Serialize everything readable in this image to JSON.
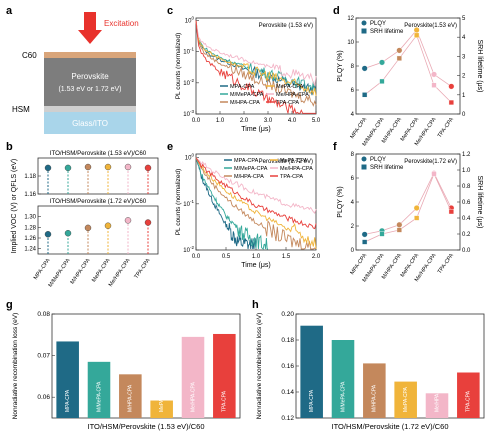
{
  "colors": {
    "MPA": "#1f6a86",
    "MMePA": "#34a89a",
    "MHPA": "#c4885c",
    "MePA": "#f0b43a",
    "MeHPA": "#f3b6c8",
    "TPA": "#e8403c",
    "arrow": "#e8322c",
    "c60": "#d9a57a",
    "pero": "#7d7d7d",
    "hsm": "#cfcfcf",
    "glass": "#a9d5ea"
  },
  "panel_labels": [
    "a",
    "b",
    "c",
    "d",
    "e",
    "f",
    "g",
    "h"
  ],
  "panel_a": {
    "excitation": "Excitation",
    "c60": "C60",
    "hsm": "HSM",
    "perovskite": "Perovskite",
    "bandgap": "(1.53 eV or 1.72 eV)",
    "glass": "Glass/ITO"
  },
  "chart_data": [
    {
      "panel": "b",
      "type": "scatter",
      "ylabel": "Implied VOC (V) or QFLS (eV)",
      "categories": [
        "MPA-CPA",
        "M/MePA-CPA",
        "M/HPA-CPA",
        "MePA-CPA",
        "Me/HPA-CPA",
        "TPA-CPA"
      ],
      "subplots": [
        {
          "label": "ITO/HSM/Perovskite (1.53 eV)/C60",
          "ylim": [
            1.16,
            1.2
          ],
          "yticks": [
            1.16,
            1.18
          ],
          "values": [
            1.189,
            1.189,
            1.19,
            1.19,
            1.19,
            1.189
          ]
        },
        {
          "label": "ITO/HSM/Perovskite (1.72 eV)/C60",
          "ylim": [
            1.23,
            1.32
          ],
          "yticks": [
            1.24,
            1.26,
            1.28,
            1.3
          ],
          "values": [
            1.267,
            1.269,
            1.279,
            1.283,
            1.293,
            1.289
          ]
        }
      ]
    },
    {
      "panel": "c",
      "type": "line",
      "title": "Perovskite (1.53 eV)",
      "xlabel": "Time (μs)",
      "ylabel": "PL counts (normalized)",
      "xlim": [
        0,
        5
      ],
      "xticks": [
        0.0,
        1.0,
        2.0,
        3.0,
        4.0,
        5.0
      ],
      "ylog": true,
      "ylim": [
        0.001,
        1.2
      ],
      "yticks": [
        "10^0",
        "10^-1",
        "10^-2",
        "10^-3"
      ],
      "series": [
        {
          "name": "MPA-CPA",
          "x": [
            0,
            0.1,
            0.3,
            0.6,
            1,
            2,
            3,
            4,
            5
          ],
          "y": [
            1,
            0.22,
            0.12,
            0.08,
            0.055,
            0.028,
            0.016,
            0.009,
            0.0055
          ]
        },
        {
          "name": "M/MePA-CPA",
          "x": [
            0,
            0.1,
            0.3,
            0.6,
            1,
            2,
            3,
            4,
            5
          ],
          "y": [
            1,
            0.25,
            0.14,
            0.095,
            0.065,
            0.034,
            0.02,
            0.012,
            0.007
          ]
        },
        {
          "name": "M/HPA-CPA",
          "x": [
            0,
            0.1,
            0.3,
            0.6,
            1,
            2,
            3,
            4,
            5
          ],
          "y": [
            1,
            0.2,
            0.1,
            0.065,
            0.042,
            0.019,
            0.009,
            0.0045,
            0.0025
          ]
        },
        {
          "name": "MePA-CPA",
          "x": [
            0,
            0.1,
            0.3,
            0.6,
            1,
            2,
            3,
            4,
            5
          ],
          "y": [
            1,
            0.24,
            0.13,
            0.09,
            0.06,
            0.03,
            0.017,
            0.0095,
            0.0055
          ]
        },
        {
          "name": "Me/HPA-CPA",
          "x": [
            0,
            0.1,
            0.3,
            0.6,
            1,
            2,
            3,
            4,
            5
          ],
          "y": [
            1,
            0.3,
            0.18,
            0.13,
            0.095,
            0.055,
            0.033,
            0.02,
            0.012
          ]
        },
        {
          "name": "TPA-CPA",
          "x": [
            0,
            0.1,
            0.3,
            0.6,
            1,
            2,
            3,
            4,
            5
          ],
          "y": [
            1,
            0.16,
            0.07,
            0.04,
            0.024,
            0.008,
            0.003,
            0.0013,
            0.0006
          ]
        }
      ]
    },
    {
      "panel": "d",
      "type": "line",
      "title": "Perovskite(1.53 eV)",
      "ylabel": "PLQY (%)",
      "y2label": "SRH lifetime (μs)",
      "categories": [
        "MPA-CPA",
        "M/MePA-CPA",
        "M/HPA-CPA",
        "MePA-CPA",
        "Me/HPA-CPA",
        "TPA-CPA"
      ],
      "ylim": [
        4,
        12
      ],
      "yticks": [
        4,
        6,
        8,
        10,
        12
      ],
      "y2lim": [
        0,
        5
      ],
      "y2ticks": [
        0,
        1,
        2,
        3,
        4,
        5
      ],
      "series": [
        {
          "name": "PLQY",
          "axis": "left",
          "values": [
            7.8,
            8.3,
            9.3,
            11.0,
            7.3,
            6.3
          ]
        },
        {
          "name": "SRH lifetime",
          "axis": "right",
          "values": [
            1.0,
            1.7,
            2.9,
            4.1,
            1.5,
            0.6
          ]
        }
      ]
    },
    {
      "panel": "e",
      "type": "line",
      "title": "Perovskite (1.72 eV)",
      "xlabel": "Time (μs)",
      "ylabel": "PL counts (normalized)",
      "xlim": [
        0,
        2
      ],
      "xticks": [
        0.0,
        0.5,
        1.0,
        1.5,
        2.0
      ],
      "ylog": true,
      "ylim": [
        0.01,
        1.2
      ],
      "yticks": [
        "10^0",
        "10^-1",
        "10^-2"
      ],
      "series": [
        {
          "name": "MPA-CPA",
          "x": [
            0,
            0.1,
            0.3,
            0.5,
            0.7,
            1.0
          ],
          "y": [
            1,
            0.35,
            0.1,
            0.035,
            0.015,
            0.012
          ]
        },
        {
          "name": "M/MePA-CPA",
          "x": [
            0,
            0.1,
            0.3,
            0.5,
            0.8,
            1.2
          ],
          "y": [
            1,
            0.4,
            0.14,
            0.055,
            0.022,
            0.012
          ]
        },
        {
          "name": "M/HPA-CPA",
          "x": [
            0,
            0.1,
            0.3,
            0.6,
            1.0,
            1.5,
            2.0
          ],
          "y": [
            1,
            0.55,
            0.25,
            0.1,
            0.04,
            0.017,
            0.011
          ]
        },
        {
          "name": "MePA-CPA",
          "x": [
            0,
            0.1,
            0.3,
            0.6,
            1.0,
            1.5,
            2.0
          ],
          "y": [
            1,
            0.6,
            0.33,
            0.15,
            0.065,
            0.03,
            0.015
          ]
        },
        {
          "name": "Me/HPA-CPA",
          "x": [
            0,
            0.1,
            0.3,
            0.6,
            1.0,
            1.5,
            2.0
          ],
          "y": [
            1,
            0.75,
            0.5,
            0.3,
            0.17,
            0.1,
            0.07
          ]
        },
        {
          "name": "TPA-CPA",
          "x": [
            0,
            0.1,
            0.3,
            0.6,
            1.0,
            1.5,
            2.0
          ],
          "y": [
            1,
            0.65,
            0.38,
            0.2,
            0.09,
            0.05,
            0.03
          ]
        }
      ]
    },
    {
      "panel": "f",
      "type": "line",
      "title": "Perovskite(1.72 eV)",
      "ylabel": "PLQY (%)",
      "y2label": "SRH lifetime (μs)",
      "categories": [
        "MPA-CPA",
        "M/MePA-CPA",
        "M/HPA-CPA",
        "MePA-CPA",
        "Me/HPA-CPA",
        "TPA-CPA"
      ],
      "ylim": [
        0,
        8
      ],
      "yticks": [
        0,
        2,
        4,
        6,
        8
      ],
      "y2lim": [
        0.0,
        1.2
      ],
      "y2ticks": [
        0.0,
        0.2,
        0.4,
        0.6,
        0.8,
        1.0,
        1.2
      ],
      "series": [
        {
          "name": "PLQY",
          "axis": "left",
          "values": [
            1.3,
            1.6,
            2.1,
            3.5,
            6.4,
            3.5
          ]
        },
        {
          "name": "SRH lifetime",
          "axis": "right",
          "values": [
            0.1,
            0.2,
            0.25,
            0.4,
            0.95,
            0.48
          ]
        }
      ]
    },
    {
      "panel": "g",
      "type": "bar",
      "xlabel": "ITO/HSM/Perovskite (1.53 eV)/C60",
      "ylabel": "Nonradiative recombination loss (eV)",
      "categories": [
        "MPA-CPA",
        "M/MePA-CPA",
        "M/HPA-CPA",
        "MePA-CPA",
        "Me/HPA-CPA",
        "TPA-CPA"
      ],
      "values": [
        0.0734,
        0.0685,
        0.0655,
        0.0592,
        0.0745,
        0.0752
      ],
      "ylim": [
        0.055,
        0.08
      ],
      "yticks": [
        0.06,
        0.07,
        0.08
      ]
    },
    {
      "panel": "h",
      "type": "bar",
      "xlabel": "ITO/HSM/Perovskite (1.72 eV)/C60",
      "ylabel": "Nonradiative recombination loss (eV)",
      "categories": [
        "MPA-CPA",
        "M/MePA-CPA",
        "M/HPA-CPA",
        "MePA-CPA",
        "Me/HPA-CPA",
        "TPA-CPA"
      ],
      "values": [
        0.191,
        0.18,
        0.162,
        0.148,
        0.139,
        0.155
      ],
      "ylim": [
        0.12,
        0.2
      ],
      "yticks": [
        0.12,
        0.14,
        0.16,
        0.18,
        0.2
      ]
    }
  ]
}
